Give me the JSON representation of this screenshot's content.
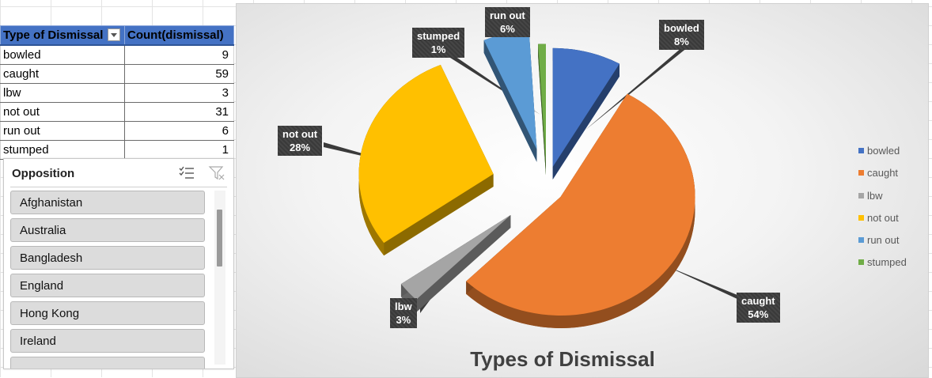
{
  "pivot": {
    "header_type": "Type of Dismissal",
    "header_count": "Count(dismissal)",
    "rows": [
      {
        "label": "bowled",
        "value": "9"
      },
      {
        "label": "caught",
        "value": "59"
      },
      {
        "label": "lbw",
        "value": "3"
      },
      {
        "label": "not out",
        "value": "31"
      },
      {
        "label": "run out",
        "value": "6"
      },
      {
        "label": "stumped",
        "value": "1"
      }
    ]
  },
  "slicer": {
    "title": "Opposition",
    "items": [
      "Afghanistan",
      "Australia",
      "Bangladesh",
      "England",
      "Hong Kong",
      "Ireland"
    ]
  },
  "chart_data": {
    "type": "pie",
    "title": "Types of Dismissal",
    "categories": [
      "bowled",
      "caught",
      "lbw",
      "not out",
      "run out",
      "stumped"
    ],
    "values": [
      9,
      59,
      3,
      31,
      6,
      1
    ],
    "percent_labels": [
      "8%",
      "54%",
      "3%",
      "28%",
      "6%",
      "1%"
    ],
    "colors": [
      "#4472c4",
      "#ed7d31",
      "#a5a5a5",
      "#ffc000",
      "#5b9bd5",
      "#70ad47"
    ],
    "exploded": true,
    "three_d": true,
    "legend_position": "right"
  }
}
